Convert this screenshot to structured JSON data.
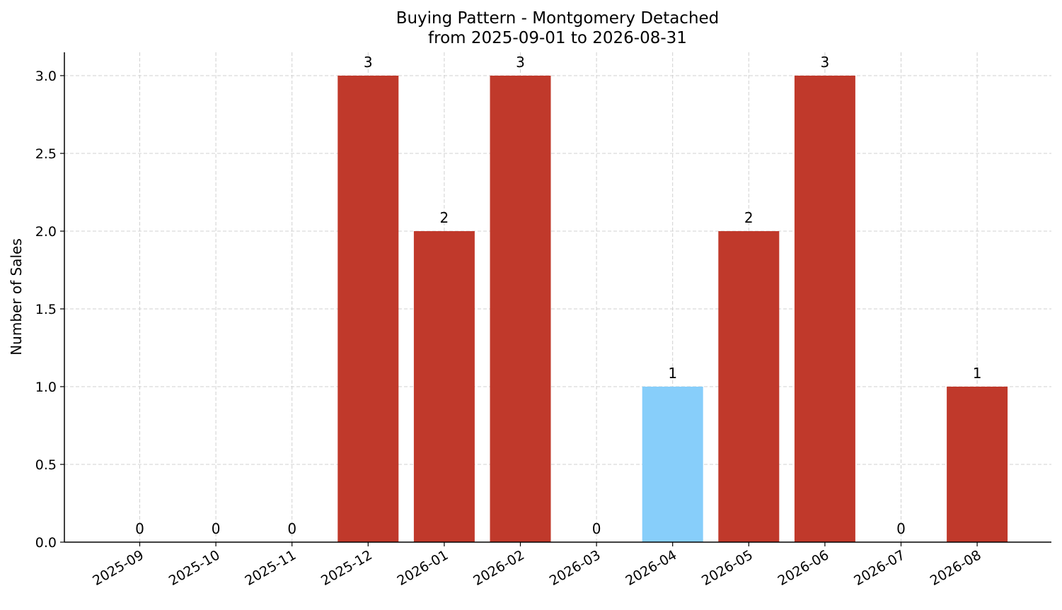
{
  "chart_data": {
    "type": "bar",
    "title": "Buying Pattern - Montgomery Detached",
    "subtitle": "from 2025-09-01 to 2026-08-31",
    "xlabel": "",
    "ylabel": "Number of Sales",
    "categories": [
      "2025-09",
      "2025-10",
      "2025-11",
      "2025-12",
      "2026-01",
      "2026-02",
      "2026-03",
      "2026-04",
      "2026-05",
      "2026-06",
      "2026-07",
      "2026-08"
    ],
    "values": [
      0,
      0,
      0,
      3,
      2,
      3,
      0,
      1,
      2,
      3,
      0,
      1
    ],
    "data_labels": [
      "0",
      "0",
      "0",
      "3",
      "2",
      "3",
      "0",
      "1",
      "2",
      "3",
      "0",
      "1"
    ],
    "bar_colors": [
      "#c0392b",
      "#c0392b",
      "#c0392b",
      "#c0392b",
      "#c0392b",
      "#c0392b",
      "#c0392b",
      "#87cefa",
      "#c0392b",
      "#c0392b",
      "#c0392b",
      "#c0392b"
    ],
    "ylim": [
      0,
      3.15
    ],
    "yticks": [
      0,
      0.5,
      1,
      1.5,
      2,
      2.5,
      3
    ],
    "ytick_labels": [
      "0.0",
      "0.5",
      "1.0",
      "1.5",
      "2.0",
      "2.5",
      "3.0"
    ],
    "grid": true,
    "legend": "none"
  }
}
